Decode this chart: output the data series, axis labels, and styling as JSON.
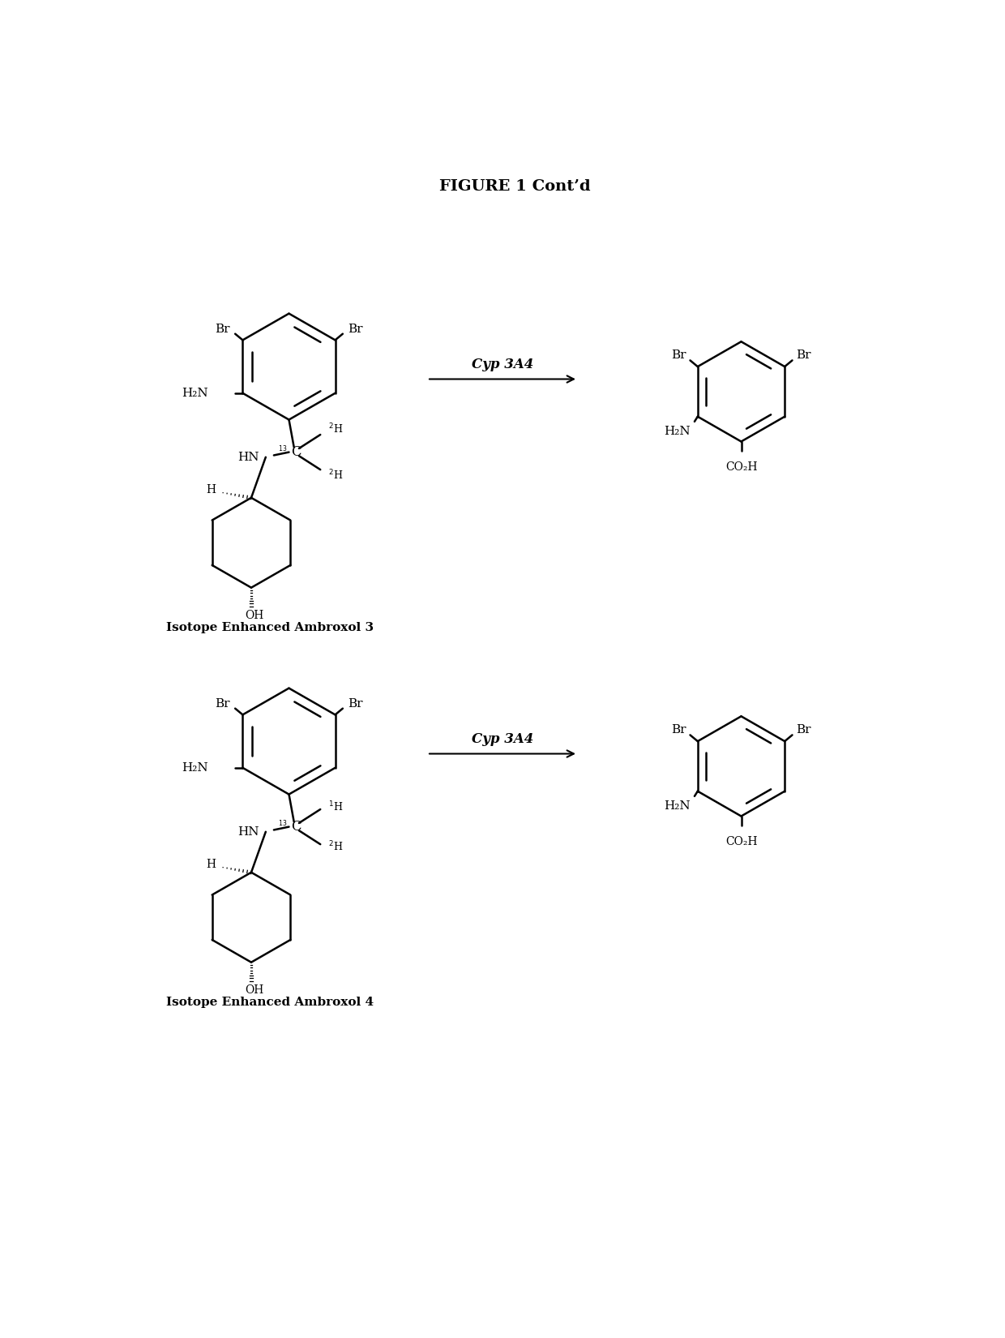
{
  "title": "FIGURE 1 Cont’d",
  "title_fontsize": 14,
  "background_color": "#ffffff",
  "line_color": "#000000",
  "line_width": 1.8,
  "label1": "Isotope Enhanced Ambroxol 3",
  "label2": "Isotope Enhanced Ambroxol 4",
  "arrow_label": "Cyp 3A4",
  "figsize": [
    12.4,
    16.5
  ],
  "dpi": 100
}
